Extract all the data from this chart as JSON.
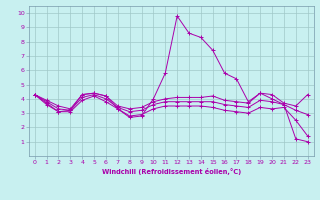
{
  "xlabel": "Windchill (Refroidissement éolien,°C)",
  "background_color": "#c8f0f0",
  "grid_color": "#a0c8c8",
  "line_color": "#aa00aa",
  "spine_color": "#7799aa",
  "xlim": [
    -0.5,
    23.5
  ],
  "ylim": [
    0,
    10.5
  ],
  "xticks": [
    0,
    1,
    2,
    3,
    4,
    5,
    6,
    7,
    8,
    9,
    10,
    11,
    12,
    13,
    14,
    15,
    16,
    17,
    18,
    19,
    20,
    21,
    22,
    23
  ],
  "yticks": [
    1,
    2,
    3,
    4,
    5,
    6,
    7,
    8,
    9,
    10
  ],
  "lines": [
    {
      "x": [
        0,
        1,
        2,
        3,
        4,
        5,
        6,
        7,
        8,
        9,
        10,
        11,
        12,
        13,
        14,
        15,
        16,
        17,
        18,
        19,
        20,
        21,
        22,
        23
      ],
      "y": [
        4.3,
        3.6,
        3.1,
        3.2,
        4.3,
        4.4,
        4.2,
        3.3,
        2.7,
        2.8,
        4.0,
        5.8,
        9.8,
        8.6,
        8.3,
        7.4,
        5.8,
        5.4,
        3.8,
        4.4,
        4.0,
        3.6,
        1.2,
        1.0
      ]
    },
    {
      "x": [
        0,
        1,
        2,
        3,
        4,
        5,
        6,
        7,
        8,
        9,
        10,
        11,
        12,
        13,
        14,
        15,
        16,
        17,
        18,
        19,
        20,
        21,
        22,
        23
      ],
      "y": [
        4.3,
        3.9,
        3.5,
        3.3,
        4.3,
        4.4,
        4.2,
        3.5,
        3.3,
        3.4,
        3.8,
        4.0,
        4.1,
        4.1,
        4.1,
        4.2,
        3.9,
        3.8,
        3.7,
        4.4,
        4.3,
        3.7,
        3.5,
        4.3
      ]
    },
    {
      "x": [
        0,
        1,
        2,
        3,
        4,
        5,
        6,
        7,
        8,
        9,
        10,
        11,
        12,
        13,
        14,
        15,
        16,
        17,
        18,
        19,
        20,
        21,
        22,
        23
      ],
      "y": [
        4.3,
        3.8,
        3.3,
        3.2,
        4.1,
        4.3,
        4.0,
        3.4,
        3.1,
        3.2,
        3.6,
        3.8,
        3.8,
        3.8,
        3.8,
        3.8,
        3.6,
        3.5,
        3.4,
        3.9,
        3.8,
        3.6,
        3.2,
        2.9
      ]
    },
    {
      "x": [
        0,
        1,
        2,
        3,
        4,
        5,
        6,
        7,
        8,
        9,
        10,
        11,
        12,
        13,
        14,
        15,
        16,
        17,
        18,
        19,
        20,
        21,
        22,
        23
      ],
      "y": [
        4.3,
        3.7,
        3.1,
        3.1,
        3.9,
        4.2,
        3.8,
        3.3,
        2.8,
        2.9,
        3.3,
        3.5,
        3.5,
        3.5,
        3.5,
        3.4,
        3.2,
        3.1,
        3.0,
        3.4,
        3.3,
        3.4,
        2.5,
        1.4
      ]
    }
  ]
}
